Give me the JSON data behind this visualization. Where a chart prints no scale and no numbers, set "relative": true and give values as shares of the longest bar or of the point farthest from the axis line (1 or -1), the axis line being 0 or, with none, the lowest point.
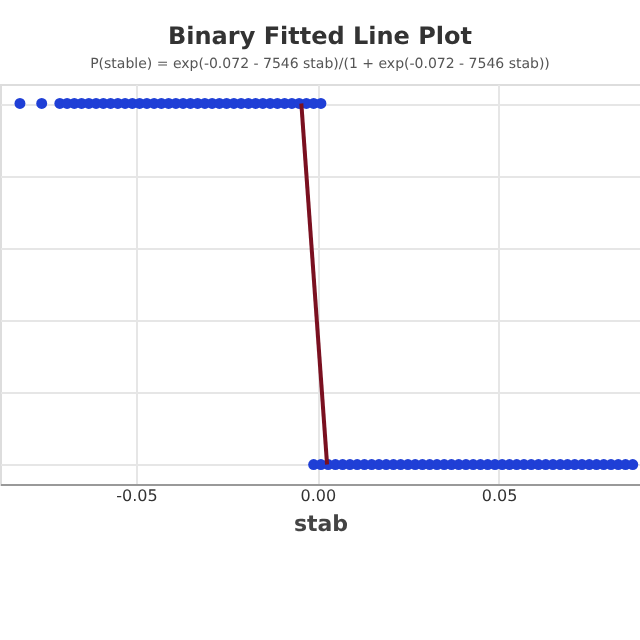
{
  "chart_data": {
    "type": "scatter",
    "title": "Binary Fitted Line Plot",
    "subtitle": "P(stable) = exp(-0.072 - 7546 stab)/(1 + exp(-0.072 - 7546 stab))",
    "xlabel": "stab",
    "relative": true,
    "grid": true,
    "marker": "circle",
    "xlim": [
      -0.0875,
      0.089
    ],
    "xticks": [
      {
        "value": -0.05,
        "label": "-0.05"
      },
      {
        "value": 0,
        "label": "0.00"
      },
      {
        "value": 0.05,
        "label": "0.05"
      }
    ],
    "series": [
      {
        "color": "#1f3fd6",
        "x": [
          -0.082,
          -0.076,
          -0.071,
          -0.069,
          -0.067,
          -0.065,
          -0.063,
          -0.061,
          -0.059,
          -0.057,
          -0.055,
          -0.053,
          -0.051,
          -0.049,
          -0.047,
          -0.045,
          -0.043,
          -0.041,
          -0.039,
          -0.037,
          -0.035,
          -0.033,
          -0.031,
          -0.029,
          -0.027,
          -0.025,
          -0.023,
          -0.021,
          -0.019,
          -0.017,
          -0.015,
          -0.013,
          -0.011,
          -0.009,
          -0.007,
          -0.005,
          -0.003,
          -0.001,
          0.001
        ],
        "values": [
          1,
          1,
          1,
          1,
          1,
          1,
          1,
          1,
          1,
          1,
          1,
          1,
          1,
          1,
          1,
          1,
          1,
          1,
          1,
          1,
          1,
          1,
          1,
          1,
          1,
          1,
          1,
          1,
          1,
          1,
          1,
          1,
          1,
          1,
          1,
          1,
          1,
          1,
          1
        ]
      },
      {
        "color": "#1f3fd6",
        "x": [
          -0.001,
          0.001,
          0.003,
          0.005,
          0.007,
          0.009,
          0.011,
          0.013,
          0.015,
          0.017,
          0.019,
          0.021,
          0.023,
          0.025,
          0.027,
          0.029,
          0.031,
          0.033,
          0.035,
          0.037,
          0.039,
          0.041,
          0.043,
          0.045,
          0.047,
          0.049,
          0.051,
          0.053,
          0.055,
          0.057,
          0.059,
          0.061,
          0.063,
          0.065,
          0.067,
          0.069,
          0.071,
          0.073,
          0.075,
          0.077,
          0.079,
          0.081,
          0.083,
          0.085,
          0.087
        ],
        "values": [
          0,
          0,
          0,
          0,
          0,
          0,
          0,
          0,
          0,
          0,
          0,
          0,
          0,
          0,
          0,
          0,
          0,
          0,
          0,
          0,
          0,
          0,
          0,
          0,
          0,
          0,
          0,
          0,
          0,
          0,
          0,
          0,
          0,
          0,
          0,
          0,
          0,
          0,
          0,
          0,
          0,
          0,
          0,
          0,
          0
        ]
      },
      {
        "type": "line",
        "marker": "none",
        "color": "#7a1020",
        "x": [
          -0.0044,
          0.0027
        ],
        "values": [
          1,
          0
        ]
      }
    ]
  }
}
